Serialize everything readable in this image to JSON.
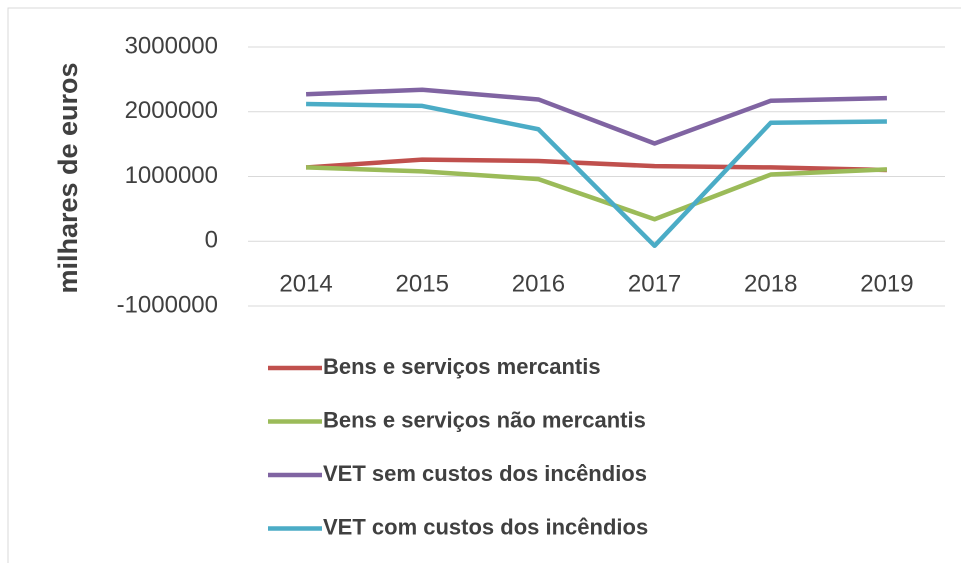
{
  "chart_data": {
    "type": "line",
    "y_label": "milhares de euros",
    "categories": [
      "2014",
      "2015",
      "2016",
      "2017",
      "2018",
      "2019"
    ],
    "series": [
      {
        "name": "Bens e serviços mercantis",
        "color": "#c0504d",
        "values": [
          1140000,
          1260000,
          1240000,
          1160000,
          1140000,
          1100000
        ]
      },
      {
        "name": "Bens e serviços não mercantis",
        "color": "#9bbb59",
        "values": [
          1140000,
          1080000,
          960000,
          340000,
          1030000,
          1110000
        ]
      },
      {
        "name": "VET sem custos dos incêndios",
        "color": "#8064a2",
        "values": [
          2270000,
          2340000,
          2190000,
          1510000,
          2170000,
          2210000
        ]
      },
      {
        "name": "VET com custos dos incêndios",
        "color": "#4bacc6",
        "values": [
          2120000,
          2090000,
          1730000,
          -70000,
          1830000,
          1850000
        ]
      }
    ],
    "ylim": [
      -1000000,
      3000000
    ],
    "yticks": [
      -1000000,
      0,
      1000000,
      2000000,
      3000000
    ],
    "grid": true,
    "legend": "bottom"
  }
}
